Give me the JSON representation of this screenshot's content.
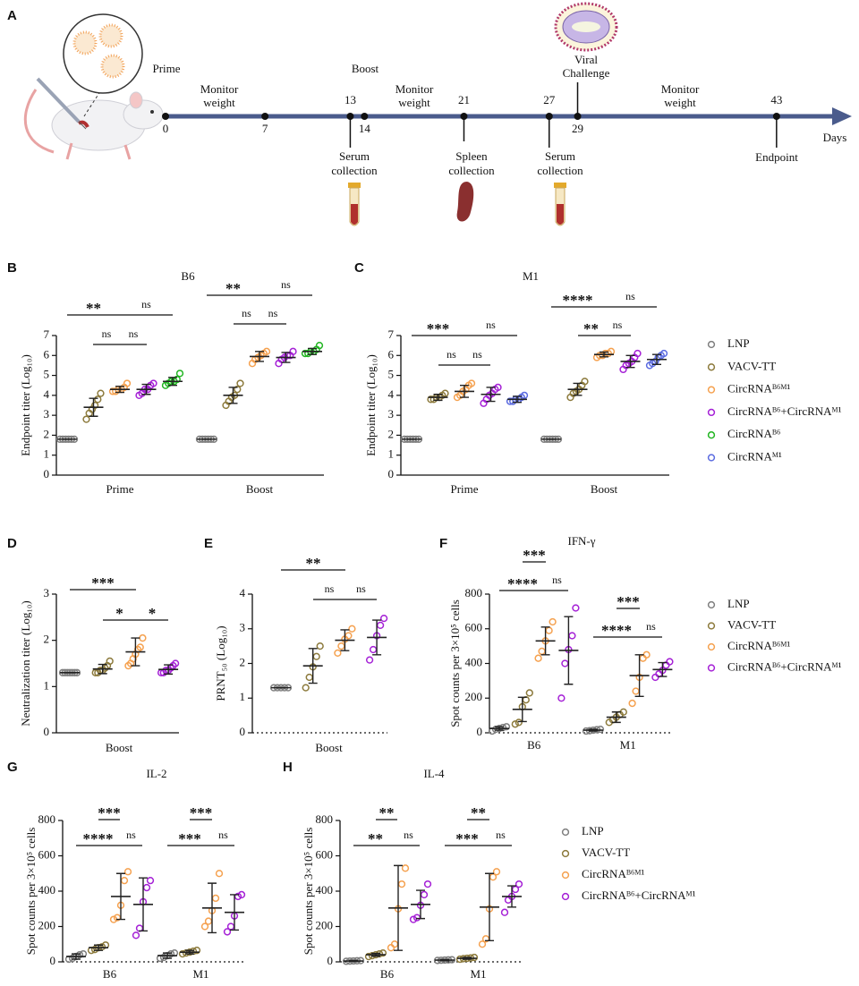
{
  "timeline": {
    "panel": "A",
    "days": [
      0,
      7,
      13,
      14,
      21,
      27,
      29,
      43
    ],
    "axis_label": "Days",
    "prime": "Prime",
    "boost": "Boost",
    "challenge": [
      "Viral",
      "Challenge"
    ],
    "monitor": [
      [
        "Monitor",
        "weight"
      ],
      [
        "Monitor",
        "weight"
      ],
      [
        "Monitor",
        "weight"
      ]
    ],
    "collections": [
      [
        "Serum",
        "collection"
      ],
      [
        "Spleen",
        "collection"
      ],
      [
        "Serum",
        "collection"
      ]
    ],
    "endpoint": "Endpoint"
  },
  "legends": [
    {
      "entries": [
        {
          "name": "LNP",
          "color": "#7f7f7f"
        },
        {
          "name": "VACV-TT",
          "color": "#8c7a3c"
        },
        {
          "name": "CircRNAᴮ⁶ᴹ¹",
          "color": "#f5a14f"
        },
        {
          "name": "CircRNAᴮ⁶+CircRNAᴹ¹",
          "color": "#a521d6"
        },
        {
          "name": "CircRNAᴮ⁶",
          "color": "#21b521"
        },
        {
          "name": "CircRNAᴹ¹",
          "color": "#5b6be0"
        }
      ]
    },
    {
      "entries": [
        {
          "name": "LNP",
          "color": "#7f7f7f"
        },
        {
          "name": "VACV-TT",
          "color": "#8c7a3c"
        },
        {
          "name": "CircRNAᴮ⁶ᴹ¹",
          "color": "#f5a14f"
        },
        {
          "name": "CircRNAᴮ⁶+CircRNAᴹ¹",
          "color": "#a521d6"
        }
      ]
    },
    {
      "entries": [
        {
          "name": "LNP",
          "color": "#7f7f7f"
        },
        {
          "name": "VACV-TT",
          "color": "#8c7a3c"
        },
        {
          "name": "CircRNAᴮ⁶ᴹ¹",
          "color": "#f5a14f"
        },
        {
          "name": "CircRNAᴮ⁶+CircRNAᴹ¹",
          "color": "#a521d6"
        }
      ]
    }
  ],
  "chart_data": [
    {
      "type": "dotplot",
      "panel": "B",
      "title": "B6",
      "y_label": "Endpoint titer (Log₁₀)",
      "categories": [
        "Prime",
        "Boost"
      ],
      "ylim": [
        0,
        7
      ],
      "yticks": [
        0,
        1,
        2,
        3,
        4,
        5,
        6,
        7
      ],
      "xaxis_dotted": false,
      "series": [
        {
          "color": "#7f7f7f",
          "values": [
            [
              1.8,
              1.8,
              1.8,
              1.8,
              1.8,
              1.8
            ],
            [
              1.8,
              1.8,
              1.8,
              1.8,
              1.8,
              1.8
            ]
          ],
          "mean": [
            1.8,
            1.8
          ],
          "sd": [
            0,
            0
          ]
        },
        {
          "color": "#8c7a3c",
          "values": [
            [
              2.8,
              3.1,
              3.3,
              3.5,
              3.8,
              4.1
            ],
            [
              3.5,
              3.7,
              3.9,
              4.0,
              4.3,
              4.6
            ]
          ],
          "mean": [
            3.4,
            4.0
          ],
          "sd": [
            0.45,
            0.4
          ]
        },
        {
          "color": "#f5a14f",
          "values": [
            [
              4.2,
              4.2,
              4.3,
              4.3,
              4.4,
              4.6
            ],
            [
              5.6,
              5.8,
              5.9,
              6.0,
              6.1,
              6.2
            ]
          ],
          "mean": [
            4.3,
            5.95
          ],
          "sd": [
            0.15,
            0.25
          ]
        },
        {
          "color": "#a521d6",
          "values": [
            [
              4.0,
              4.1,
              4.3,
              4.3,
              4.5,
              4.6
            ],
            [
              5.6,
              5.8,
              5.9,
              6.0,
              6.0,
              6.2
            ]
          ],
          "mean": [
            4.3,
            5.9
          ],
          "sd": [
            0.25,
            0.25
          ]
        },
        {
          "color": "#21b521",
          "values": [
            [
              4.5,
              4.6,
              4.7,
              4.7,
              4.8,
              5.1
            ],
            [
              6.1,
              6.1,
              6.2,
              6.2,
              6.3,
              6.5
            ]
          ],
          "mean": [
            4.7,
            6.2
          ],
          "sd": [
            0.2,
            0.15
          ]
        }
      ],
      "annotations": [
        "**",
        "ns",
        "ns",
        "ns",
        "**",
        "ns",
        "ns",
        "ns"
      ]
    },
    {
      "type": "dotplot",
      "panel": "C",
      "title": "M1",
      "y_label": "Endpoint titer (Log₁₀)",
      "categories": [
        "Prime",
        "Boost"
      ],
      "ylim": [
        0,
        7
      ],
      "yticks": [
        0,
        1,
        2,
        3,
        4,
        5,
        6,
        7
      ],
      "xaxis_dotted": false,
      "series": [
        {
          "color": "#7f7f7f",
          "values": [
            [
              1.8,
              1.8,
              1.8,
              1.8,
              1.8,
              1.8
            ],
            [
              1.8,
              1.8,
              1.8,
              1.8,
              1.8,
              1.8
            ]
          ],
          "mean": [
            1.8,
            1.8
          ],
          "sd": [
            0,
            0
          ]
        },
        {
          "color": "#8c7a3c",
          "values": [
            [
              3.8,
              3.8,
              3.9,
              3.9,
              4.0,
              4.1
            ],
            [
              3.9,
              4.1,
              4.2,
              4.3,
              4.5,
              4.7
            ]
          ],
          "mean": [
            3.9,
            4.3
          ],
          "sd": [
            0.15,
            0.3
          ]
        },
        {
          "color": "#f5a14f",
          "values": [
            [
              3.9,
              4.0,
              4.2,
              4.3,
              4.5,
              4.6
            ],
            [
              5.9,
              6.0,
              6.0,
              6.1,
              6.1,
              6.2
            ]
          ],
          "mean": [
            4.2,
            6.05
          ],
          "sd": [
            0.3,
            0.12
          ]
        },
        {
          "color": "#a521d6",
          "values": [
            [
              3.6,
              3.8,
              4.0,
              4.1,
              4.3,
              4.4
            ],
            [
              5.3,
              5.5,
              5.6,
              5.7,
              5.9,
              6.1
            ]
          ],
          "mean": [
            4.05,
            5.7
          ],
          "sd": [
            0.35,
            0.3
          ]
        },
        {
          "color": "#5b6be0",
          "values": [
            [
              3.7,
              3.7,
              3.8,
              3.8,
              3.9,
              4.0
            ],
            [
              5.5,
              5.6,
              5.7,
              5.9,
              6.0,
              6.1
            ]
          ],
          "mean": [
            3.8,
            5.8
          ],
          "sd": [
            0.15,
            0.25
          ]
        }
      ],
      "annotations": [
        "***",
        "ns",
        "ns",
        "ns",
        "****",
        "ns",
        "**",
        "ns"
      ]
    },
    {
      "type": "dotplot",
      "panel": "D",
      "y_label": "Neutralization titer (Log₁₀)",
      "categories": [
        "Boost"
      ],
      "ylim": [
        0,
        3
      ],
      "yticks": [
        0,
        1,
        2,
        3
      ],
      "xaxis_dotted": false,
      "series": [
        {
          "color": "#7f7f7f",
          "values": [
            [
              1.3,
              1.3,
              1.3,
              1.3,
              1.3,
              1.3,
              1.3
            ]
          ],
          "mean": [
            1.3
          ],
          "sd": [
            0
          ]
        },
        {
          "color": "#8c7a3c",
          "values": [
            [
              1.3,
              1.3,
              1.35,
              1.35,
              1.4,
              1.45,
              1.55
            ]
          ],
          "mean": [
            1.38
          ],
          "sd": [
            0.1
          ]
        },
        {
          "color": "#f5a14f",
          "values": [
            [
              1.45,
              1.5,
              1.6,
              1.7,
              1.8,
              1.85,
              2.05
            ]
          ],
          "mean": [
            1.75
          ],
          "sd": [
            0.3
          ]
        },
        {
          "color": "#a521d6",
          "values": [
            [
              1.3,
              1.3,
              1.35,
              1.35,
              1.4,
              1.45,
              1.5
            ]
          ],
          "mean": [
            1.37
          ],
          "sd": [
            0.1
          ]
        }
      ],
      "annotations": [
        "***",
        "*",
        "*"
      ]
    },
    {
      "type": "dotplot",
      "panel": "E",
      "y_label": "PRNT₅₀ (Log₁₀)",
      "categories": [
        "Boost"
      ],
      "ylim": [
        0,
        4
      ],
      "yticks": [
        0,
        1,
        2,
        3,
        4
      ],
      "xaxis_dotted": true,
      "series": [
        {
          "color": "#7f7f7f",
          "values": [
            [
              1.3,
              1.3,
              1.3,
              1.3,
              1.3
            ]
          ],
          "mean": [
            1.3
          ],
          "sd": [
            0
          ]
        },
        {
          "color": "#8c7a3c",
          "values": [
            [
              1.3,
              1.6,
              1.9,
              2.2,
              2.5
            ]
          ],
          "mean": [
            1.93
          ],
          "sd": [
            0.5
          ]
        },
        {
          "color": "#f5a14f",
          "values": [
            [
              2.3,
              2.5,
              2.7,
              2.8,
              3.0
            ]
          ],
          "mean": [
            2.67
          ],
          "sd": [
            0.3
          ]
        },
        {
          "color": "#a521d6",
          "values": [
            [
              2.1,
              2.4,
              2.8,
              3.1,
              3.3
            ]
          ],
          "mean": [
            2.75
          ],
          "sd": [
            0.5
          ]
        }
      ],
      "annotations": [
        "**",
        "ns",
        "ns"
      ]
    },
    {
      "type": "dotplot",
      "panel": "F",
      "title": "IFN-γ",
      "y_label": "Spot counts per 3×10⁵ cells",
      "categories": [
        "B6",
        "M1"
      ],
      "ylim": [
        0,
        800
      ],
      "yticks": [
        0,
        200,
        400,
        600,
        800
      ],
      "xaxis_dotted": true,
      "series": [
        {
          "color": "#7f7f7f",
          "values": [
            [
              10,
              20,
              25,
              30,
              35
            ],
            [
              10,
              12,
              15,
              18,
              20
            ]
          ],
          "mean": [
            25,
            15
          ],
          "sd": [
            10,
            5
          ]
        },
        {
          "color": "#8c7a3c",
          "values": [
            [
              50,
              60,
              150,
              190,
              230
            ],
            [
              60,
              75,
              90,
              105,
              120
            ]
          ],
          "mean": [
            135,
            90
          ],
          "sd": [
            70,
            30
          ]
        },
        {
          "color": "#f5a14f",
          "values": [
            [
              430,
              470,
              530,
              590,
              640
            ],
            [
              170,
              240,
              320,
              430,
              450
            ]
          ],
          "mean": [
            530,
            330
          ],
          "sd": [
            80,
            120
          ]
        },
        {
          "color": "#a521d6",
          "values": [
            [
              200,
              400,
              480,
              560,
              720
            ],
            [
              320,
              340,
              360,
              390,
              410
            ]
          ],
          "mean": [
            475,
            365
          ],
          "sd": [
            195,
            40
          ]
        }
      ],
      "annotations": [
        "****",
        "ns",
        "***",
        "****",
        "ns",
        "***"
      ]
    },
    {
      "type": "dotplot",
      "panel": "G",
      "title": "IL-2",
      "y_label": "Spot counts per 3×10⁵ cells",
      "categories": [
        "B6",
        "M1"
      ],
      "ylim": [
        0,
        800
      ],
      "yticks": [
        0,
        200,
        400,
        600,
        800
      ],
      "xaxis_dotted": true,
      "series": [
        {
          "color": "#7f7f7f",
          "values": [
            [
              15,
              20,
              30,
              40,
              45
            ],
            [
              20,
              25,
              35,
              45,
              50
            ]
          ],
          "mean": [
            30,
            35
          ],
          "sd": [
            15,
            15
          ]
        },
        {
          "color": "#8c7a3c",
          "values": [
            [
              65,
              70,
              80,
              85,
              95
            ],
            [
              45,
              50,
              55,
              60,
              65
            ]
          ],
          "mean": [
            80,
            55
          ],
          "sd": [
            15,
            10
          ]
        },
        {
          "color": "#f5a14f",
          "values": [
            [
              240,
              250,
              320,
              460,
              510
            ],
            [
              200,
              230,
              290,
              360,
              500
            ]
          ],
          "mean": [
            370,
            305
          ],
          "sd": [
            130,
            140
          ]
        },
        {
          "color": "#a521d6",
          "values": [
            [
              150,
              190,
              340,
              420,
              460
            ],
            [
              170,
              200,
              260,
              370,
              380
            ]
          ],
          "mean": [
            325,
            280
          ],
          "sd": [
            150,
            100
          ]
        }
      ],
      "annotations": [
        "****",
        "ns",
        "***",
        "***",
        "ns",
        "***"
      ]
    },
    {
      "type": "dotplot",
      "panel": "H",
      "title": "IL-4",
      "y_label": "Spot counts per 3×10⁵ cells",
      "categories": [
        "B6",
        "M1"
      ],
      "ylim": [
        0,
        800
      ],
      "yticks": [
        0,
        200,
        400,
        600,
        800
      ],
      "xaxis_dotted": true,
      "series": [
        {
          "color": "#7f7f7f",
          "values": [
            [
              3,
              4,
              5,
              6,
              7
            ],
            [
              8,
              9,
              10,
              11,
              12
            ]
          ],
          "mean": [
            5,
            10
          ],
          "sd": [
            3,
            3
          ]
        },
        {
          "color": "#8c7a3c",
          "values": [
            [
              30,
              35,
              40,
              45,
              50
            ],
            [
              15,
              18,
              20,
              22,
              25
            ]
          ],
          "mean": [
            40,
            20
          ],
          "sd": [
            8,
            5
          ]
        },
        {
          "color": "#f5a14f",
          "values": [
            [
              80,
              100,
              300,
              440,
              530
            ],
            [
              100,
              130,
              300,
              480,
              510
            ]
          ],
          "mean": [
            305,
            310
          ],
          "sd": [
            240,
            190
          ]
        },
        {
          "color": "#a521d6",
          "values": [
            [
              240,
              250,
              320,
              380,
              440
            ],
            [
              280,
              350,
              370,
              410,
              440
            ]
          ],
          "mean": [
            325,
            370
          ],
          "sd": [
            80,
            60
          ]
        }
      ],
      "annotations": [
        "**",
        "ns",
        "**",
        "***",
        "ns",
        "**"
      ]
    }
  ]
}
